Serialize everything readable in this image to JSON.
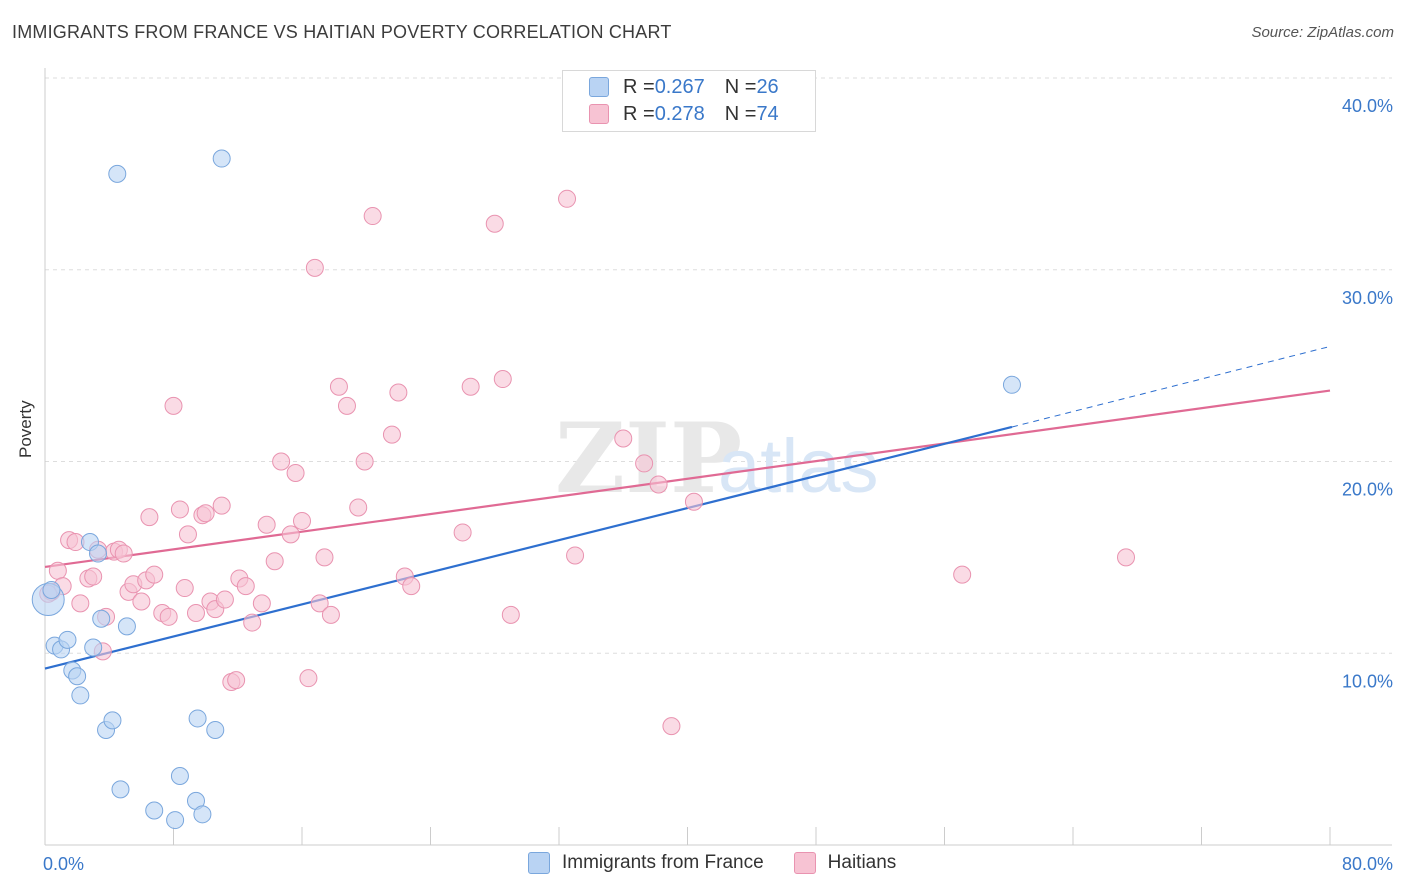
{
  "header": {
    "title": "IMMIGRANTS FROM FRANCE VS HAITIAN POVERTY CORRELATION CHART",
    "source": "Source: ZipAtlas.com"
  },
  "legend_top": {
    "rows": [
      {
        "r_key": "R = ",
        "r_val": "0.267",
        "n_key": "N = ",
        "n_val": "26"
      },
      {
        "r_key": "R = ",
        "r_val": "0.278",
        "n_key": "N = ",
        "n_val": "74"
      }
    ]
  },
  "legend_bottom": {
    "items": [
      {
        "label": "Immigrants from France"
      },
      {
        "label": "Haitians"
      }
    ]
  },
  "colors": {
    "blue_fill": "#b9d3f3",
    "blue_stroke": "#7aa7dd",
    "blue_line": "#2e6fcf",
    "pink_fill": "#f7c3d3",
    "pink_stroke": "#e993b0",
    "pink_line": "#e06a94",
    "tick_label": "#3a78c9",
    "grid": "#dddddd"
  },
  "watermark": {
    "bold": "ZIP",
    "light": "atlas"
  },
  "chart_data": {
    "type": "scatter",
    "ylabel": "Poverty",
    "xlabel": "",
    "xlim": [
      0,
      80
    ],
    "ylim": [
      0,
      40
    ],
    "x_tick_labels": [
      "0.0%",
      "80.0%"
    ],
    "y_ticks": [
      10,
      20,
      30,
      40
    ],
    "y_tick_labels": [
      "10.0%",
      "20.0%",
      "30.0%",
      "40.0%"
    ],
    "grid": "horizontal dashed",
    "series": [
      {
        "name": "Immigrants from France",
        "r": 0.267,
        "n": 26,
        "points": [
          [
            0.2,
            12.8
          ],
          [
            0.4,
            13.3
          ],
          [
            0.6,
            10.4
          ],
          [
            1.0,
            10.2
          ],
          [
            1.4,
            10.7
          ],
          [
            1.7,
            9.1
          ],
          [
            2.0,
            8.8
          ],
          [
            2.2,
            7.8
          ],
          [
            2.8,
            15.8
          ],
          [
            3.0,
            10.3
          ],
          [
            3.3,
            15.2
          ],
          [
            3.5,
            11.8
          ],
          [
            3.8,
            6.0
          ],
          [
            4.2,
            6.5
          ],
          [
            4.5,
            35.0
          ],
          [
            4.7,
            2.9
          ],
          [
            5.1,
            11.4
          ],
          [
            6.8,
            1.8
          ],
          [
            8.1,
            1.3
          ],
          [
            8.4,
            3.6
          ],
          [
            9.4,
            2.3
          ],
          [
            9.5,
            6.6
          ],
          [
            9.8,
            1.6
          ],
          [
            10.6,
            6.0
          ],
          [
            11.0,
            35.8
          ],
          [
            60.2,
            24.0
          ]
        ],
        "trend": {
          "x0": 0,
          "y0": 9.2,
          "x1": 60.2,
          "y1": 21.8,
          "dashed_to_x": 80,
          "dashed_to_y": 26.0
        }
      },
      {
        "name": "Haitians",
        "r": 0.278,
        "n": 74,
        "points": [
          [
            0.4,
            13.2
          ],
          [
            0.8,
            14.3
          ],
          [
            1.1,
            13.5
          ],
          [
            1.5,
            15.9
          ],
          [
            1.9,
            15.8
          ],
          [
            2.2,
            12.6
          ],
          [
            2.7,
            13.9
          ],
          [
            3.0,
            14.0
          ],
          [
            3.3,
            15.4
          ],
          [
            3.6,
            10.1
          ],
          [
            3.8,
            11.9
          ],
          [
            4.3,
            15.3
          ],
          [
            4.6,
            15.4
          ],
          [
            4.9,
            15.2
          ],
          [
            5.2,
            13.2
          ],
          [
            5.5,
            13.6
          ],
          [
            6.0,
            12.7
          ],
          [
            6.3,
            13.8
          ],
          [
            6.5,
            17.1
          ],
          [
            6.8,
            14.1
          ],
          [
            7.3,
            12.1
          ],
          [
            7.7,
            11.9
          ],
          [
            8.0,
            22.9
          ],
          [
            8.4,
            17.5
          ],
          [
            8.7,
            13.4
          ],
          [
            8.9,
            16.2
          ],
          [
            9.4,
            12.1
          ],
          [
            9.8,
            17.2
          ],
          [
            10.0,
            17.3
          ],
          [
            10.3,
            12.7
          ],
          [
            10.6,
            12.3
          ],
          [
            11.0,
            17.7
          ],
          [
            11.2,
            12.8
          ],
          [
            11.6,
            8.5
          ],
          [
            11.9,
            8.6
          ],
          [
            12.1,
            13.9
          ],
          [
            12.5,
            13.5
          ],
          [
            12.9,
            11.6
          ],
          [
            13.5,
            12.6
          ],
          [
            13.8,
            16.7
          ],
          [
            14.3,
            14.8
          ],
          [
            14.7,
            20.0
          ],
          [
            15.3,
            16.2
          ],
          [
            15.6,
            19.4
          ],
          [
            16.0,
            16.9
          ],
          [
            16.4,
            8.7
          ],
          [
            16.8,
            30.1
          ],
          [
            17.1,
            12.6
          ],
          [
            17.4,
            15.0
          ],
          [
            17.8,
            12.0
          ],
          [
            18.3,
            23.9
          ],
          [
            18.8,
            22.9
          ],
          [
            19.5,
            17.6
          ],
          [
            19.9,
            20.0
          ],
          [
            20.4,
            32.8
          ],
          [
            21.6,
            21.4
          ],
          [
            22.0,
            23.6
          ],
          [
            22.4,
            14.0
          ],
          [
            22.8,
            13.5
          ],
          [
            26.0,
            16.3
          ],
          [
            26.5,
            23.9
          ],
          [
            28.0,
            32.4
          ],
          [
            28.5,
            24.3
          ],
          [
            29.0,
            12.0
          ],
          [
            32.5,
            33.7
          ],
          [
            33.0,
            15.1
          ],
          [
            36.0,
            21.2
          ],
          [
            37.3,
            19.9
          ],
          [
            38.2,
            18.8
          ],
          [
            39.0,
            6.2
          ],
          [
            40.4,
            17.9
          ],
          [
            57.1,
            14.1
          ],
          [
            67.3,
            15.0
          ],
          [
            0.2,
            13.1
          ]
        ],
        "trend": {
          "x0": 0,
          "y0": 14.5,
          "x1": 80,
          "y1": 23.7
        }
      }
    ]
  }
}
